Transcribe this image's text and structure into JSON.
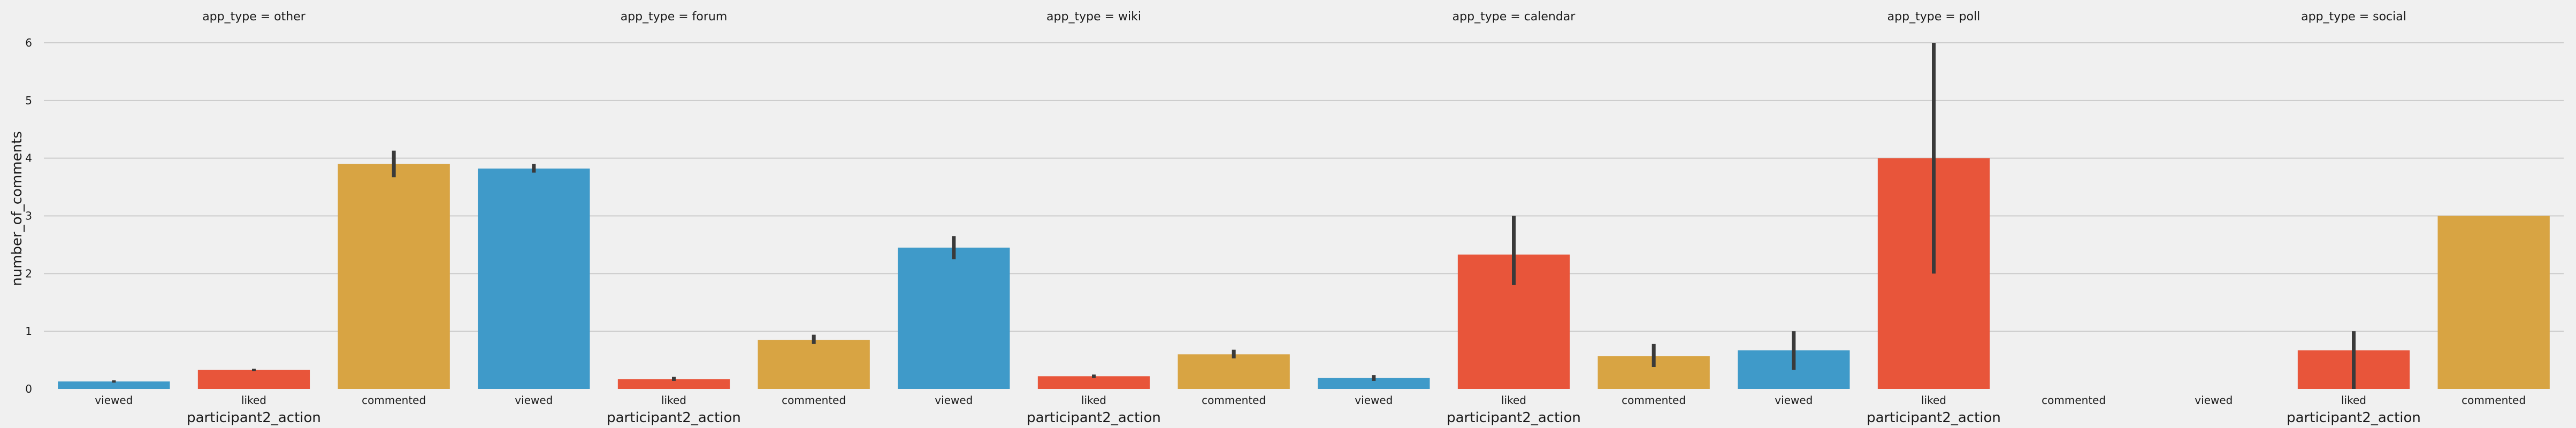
{
  "chart_data": {
    "type": "bar",
    "facet_variable": "app_type",
    "facets": [
      {
        "title": "app_type = other",
        "values": [
          0.13,
          0.33,
          3.9
        ],
        "err_low": [
          0.11,
          0.31,
          3.67
        ],
        "err_high": [
          0.15,
          0.35,
          4.13
        ]
      },
      {
        "title": "app_type = forum",
        "values": [
          3.82,
          0.17,
          0.85
        ],
        "err_low": [
          3.75,
          0.14,
          0.78
        ],
        "err_high": [
          3.9,
          0.21,
          0.94
        ]
      },
      {
        "title": "app_type = wiki",
        "values": [
          2.45,
          0.22,
          0.6
        ],
        "err_low": [
          2.25,
          0.19,
          0.53
        ],
        "err_high": [
          2.65,
          0.25,
          0.68
        ]
      },
      {
        "title": "app_type = calendar",
        "values": [
          0.19,
          2.33,
          0.57
        ],
        "err_low": [
          0.14,
          1.8,
          0.38
        ],
        "err_high": [
          0.24,
          3.0,
          0.78
        ]
      },
      {
        "title": "app_type = poll",
        "values": [
          0.67,
          4.0,
          null
        ],
        "err_low": [
          0.33,
          2.0,
          null
        ],
        "err_high": [
          1.0,
          6.0,
          null
        ]
      },
      {
        "title": "app_type = social",
        "values": [
          null,
          0.67,
          3.0
        ],
        "err_low": [
          null,
          0.0,
          3.0
        ],
        "err_high": [
          null,
          1.0,
          3.0
        ]
      }
    ],
    "categories": [
      "viewed",
      "liked",
      "commented"
    ],
    "colors": [
      "#3f9ac9",
      "#e8553a",
      "#d8a443"
    ],
    "error_color": "#3a3a3a",
    "xlabel": "participant2_action",
    "ylabel": "number_of_comments",
    "ylim": [
      0,
      6
    ],
    "yticks": [
      "0",
      "1",
      "2",
      "3",
      "4",
      "5",
      "6"
    ],
    "grid": true,
    "legend": "none"
  }
}
